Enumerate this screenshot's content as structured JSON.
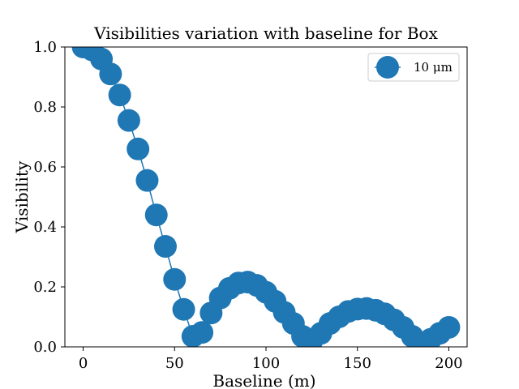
{
  "chart_data": {
    "type": "line",
    "title": "Visibilities variation with baseline for Box",
    "xlabel": "Baseline (m)",
    "ylabel": "Visibility",
    "xlim": [
      -10,
      210
    ],
    "ylim": [
      0.0,
      1.0
    ],
    "x_ticks": [
      "0",
      "50",
      "100",
      "150",
      "200"
    ],
    "y_ticks": [
      "0.0",
      "0.2",
      "0.4",
      "0.6",
      "0.8",
      "1.0"
    ],
    "grid": false,
    "legend_position": "top-right",
    "series": [
      {
        "name": "10 μm",
        "color": "#1f77b4",
        "marker": "circle",
        "x": [
          0,
          5,
          10,
          15,
          20,
          25,
          30,
          35,
          40,
          45,
          50,
          55,
          60,
          65,
          70,
          75,
          80,
          85,
          90,
          95,
          100,
          105,
          110,
          115,
          120,
          125,
          130,
          135,
          140,
          145,
          150,
          155,
          160,
          165,
          170,
          175,
          180,
          185,
          190,
          195,
          200
        ],
        "y": [
          1.0,
          0.99,
          0.96,
          0.91,
          0.84,
          0.755,
          0.66,
          0.555,
          0.44,
          0.335,
          0.225,
          0.125,
          0.035,
          0.048,
          0.113,
          0.163,
          0.195,
          0.213,
          0.216,
          0.205,
          0.182,
          0.152,
          0.115,
          0.078,
          0.035,
          0.02,
          0.045,
          0.078,
          0.1,
          0.118,
          0.126,
          0.128,
          0.122,
          0.11,
          0.09,
          0.065,
          0.035,
          0.01,
          0.025,
          0.045,
          0.065
        ]
      }
    ]
  }
}
